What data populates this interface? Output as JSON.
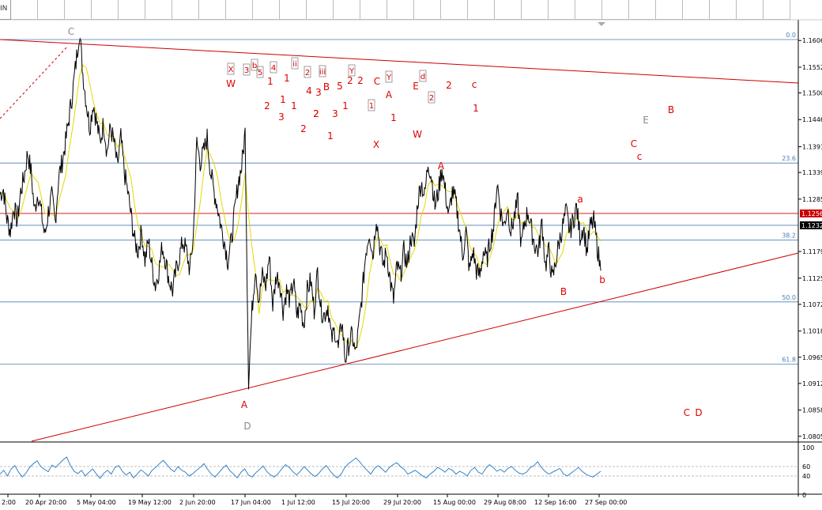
{
  "toolbar": {
    "timeframe_label": "IN",
    "button_count": 30
  },
  "colors": {
    "price": "#000000",
    "ma": "#e6d800",
    "fib": "#4a7fb5",
    "trend": "#cc0000",
    "label_red": "#dd0000",
    "label_gray": "#888888",
    "osc": "#1f77c4"
  },
  "chart_data": {
    "type": "line",
    "x_ticks": [
      "2:00",
      "20 Apr 20:00",
      "5 May 04:00",
      "19 May 12:00",
      "2 Jun 20:00",
      "17 Jun 04:00",
      "1 Jul 12:00",
      "15 Jul 20:00",
      "29 Jul 20:00",
      "15 Aug 00:00",
      "29 Aug 08:00",
      "12 Sep 16:00",
      "27 Sep 00:00"
    ],
    "y_ticks": [
      "1.1606",
      "1.1552",
      "1.1500",
      "1.1446",
      "1.1391",
      "1.1339",
      "1.1285",
      "1.1179",
      "1.1125",
      "1.1072",
      "1.1018",
      "1.0965",
      "1.0912",
      "1.0858",
      "1.0805"
    ],
    "ylim": [
      1.0795,
      1.1648
    ],
    "price_tags": [
      {
        "label": "1.1256",
        "value": 1.1256,
        "color": "#cc0000"
      },
      {
        "label": "1.1232",
        "value": 1.1232,
        "color": "#000000"
      }
    ],
    "fib_levels": [
      {
        "label": "0.0",
        "value": 1.1608
      },
      {
        "label": "23.6",
        "value": 1.1358
      },
      {
        "label": "38.2",
        "value": 1.1202
      },
      {
        "label": "50.0",
        "value": 1.1077
      },
      {
        "label": "61.8",
        "value": 1.0951
      }
    ],
    "extra_hlines": [
      1.1232
    ],
    "price_series": [
      1.1295,
      1.1305,
      1.1245,
      1.122,
      1.127,
      1.124,
      1.13,
      1.133,
      1.138,
      1.134,
      1.126,
      1.13,
      1.1255,
      1.121,
      1.126,
      1.129,
      1.124,
      1.133,
      1.136,
      1.14,
      1.145,
      1.15,
      1.156,
      1.1625,
      1.154,
      1.148,
      1.143,
      1.148,
      1.144,
      1.14,
      1.144,
      1.138,
      1.143,
      1.14,
      1.135,
      1.141,
      1.134,
      1.13,
      1.125,
      1.12,
      1.118,
      1.122,
      1.116,
      1.12,
      1.115,
      1.111,
      1.114,
      1.119,
      1.116,
      1.112,
      1.11,
      1.114,
      1.117,
      1.12,
      1.118,
      1.114,
      1.121,
      1.14,
      1.136,
      1.138,
      1.141,
      1.134,
      1.13,
      1.127,
      1.123,
      1.12,
      1.116,
      1.12,
      1.126,
      1.132,
      1.135,
      1.142,
      1.092,
      1.106,
      1.115,
      1.108,
      1.113,
      1.111,
      1.117,
      1.107,
      1.113,
      1.112,
      1.106,
      1.11,
      1.108,
      1.112,
      1.105,
      1.107,
      1.103,
      1.11,
      1.112,
      1.106,
      1.114,
      1.106,
      1.105,
      1.107,
      1.1,
      1.102,
      1.098,
      1.104,
      1.096,
      1.099,
      1.101,
      1.097,
      1.103,
      1.11,
      1.118,
      1.122,
      1.117,
      1.125,
      1.119,
      1.115,
      1.118,
      1.112,
      1.108,
      1.115,
      1.113,
      1.118,
      1.115,
      1.121,
      1.119,
      1.128,
      1.132,
      1.129,
      1.136,
      1.133,
      1.127,
      1.13,
      1.135,
      1.13,
      1.125,
      1.13,
      1.128,
      1.123,
      1.117,
      1.122,
      1.114,
      1.118,
      1.114,
      1.113,
      1.118,
      1.116,
      1.12,
      1.123,
      1.132,
      1.126,
      1.123,
      1.127,
      1.122,
      1.125,
      1.128,
      1.119,
      1.124,
      1.126,
      1.122,
      1.119,
      1.118,
      1.124,
      1.115,
      1.118,
      1.112,
      1.116,
      1.12,
      1.123,
      1.126,
      1.122,
      1.124,
      1.127,
      1.121,
      1.123,
      1.118,
      1.123,
      1.124,
      1.119,
      1.114
    ],
    "osc_ylim": [
      0,
      100
    ],
    "osc_ticks": [
      "100",
      "60",
      "40",
      "0"
    ],
    "osc_series": [
      44,
      52,
      40,
      55,
      62,
      48,
      38,
      46,
      58,
      66,
      72,
      60,
      54,
      49,
      63,
      58,
      66,
      74,
      80,
      62,
      50,
      45,
      52,
      40,
      48,
      55,
      44,
      35,
      46,
      52,
      44,
      58,
      62,
      50,
      42,
      48,
      36,
      44,
      53,
      47,
      40,
      52,
      58,
      66,
      73,
      64,
      55,
      49,
      60,
      52,
      48,
      40,
      45,
      52,
      58,
      66,
      54,
      44,
      38,
      47,
      56,
      63,
      51,
      44,
      36,
      48,
      55,
      42,
      38,
      47,
      54,
      61,
      49,
      42,
      38,
      45,
      55,
      64,
      58,
      49,
      42,
      50,
      60,
      52,
      44,
      39,
      46,
      55,
      62,
      51,
      42,
      36,
      44,
      58,
      66,
      72,
      78,
      70,
      60,
      52,
      44,
      56,
      62,
      55,
      48,
      58,
      64,
      68,
      60,
      54,
      44,
      48,
      52,
      46,
      40,
      36,
      44,
      50,
      58,
      54,
      48,
      56,
      52,
      44,
      50,
      46,
      40,
      52,
      58,
      48,
      44,
      56,
      64,
      58,
      50,
      54,
      48,
      56,
      60,
      52,
      46,
      44,
      48,
      58,
      62,
      70,
      58,
      50,
      44,
      48,
      52,
      56,
      44,
      40,
      46,
      52,
      58,
      50,
      44,
      40,
      38,
      44,
      50
    ]
  },
  "wave_labels": [
    {
      "id": "C-top",
      "text": "C",
      "color": "#888888"
    },
    {
      "id": "A-low",
      "text": "A",
      "color": "#dd0000"
    },
    {
      "id": "D-low",
      "text": "D",
      "color": "#888888"
    },
    {
      "id": "A-mid",
      "text": "A",
      "color": "#dd0000"
    },
    {
      "id": "a-rt",
      "text": "a",
      "color": "#dd0000"
    },
    {
      "id": "B-rt",
      "text": "B",
      "color": "#dd0000"
    },
    {
      "id": "b-rt",
      "text": "b",
      "color": "#dd0000"
    },
    {
      "id": "E-fut",
      "text": "E",
      "color": "#888888"
    },
    {
      "id": "B-fut",
      "text": "B",
      "color": "#dd0000"
    },
    {
      "id": "C-fut",
      "text": "C",
      "color": "#dd0000"
    },
    {
      "id": "c-fut",
      "text": "c",
      "color": "#dd0000"
    },
    {
      "id": "C-bot",
      "text": "C",
      "color": "#dd0000"
    },
    {
      "id": "D-bot",
      "text": "D",
      "color": "#dd0000"
    },
    {
      "id": "W1",
      "text": "W",
      "color": "#dd0000"
    },
    {
      "id": "X1",
      "text": "X",
      "color": "#dd0000"
    },
    {
      "id": "W2",
      "text": "W",
      "color": "#dd0000"
    },
    {
      "id": "A-up",
      "text": "A",
      "color": "#dd0000"
    },
    {
      "id": "C-up",
      "text": "C",
      "color": "#dd0000"
    },
    {
      "id": "E-up",
      "text": "E",
      "color": "#dd0000"
    },
    {
      "id": "B-up",
      "text": "B",
      "color": "#dd0000"
    },
    {
      "id": "c-up",
      "text": "c",
      "color": "#dd0000"
    },
    {
      "id": "n1",
      "text": "1",
      "color": "#dd0000"
    },
    {
      "id": "n2",
      "text": "1",
      "color": "#dd0000"
    },
    {
      "id": "n3",
      "text": "1",
      "color": "#dd0000"
    },
    {
      "id": "n4",
      "text": "1",
      "color": "#dd0000"
    },
    {
      "id": "n5",
      "text": "1",
      "color": "#dd0000"
    },
    {
      "id": "n6",
      "text": "1",
      "color": "#dd0000"
    },
    {
      "id": "n7",
      "text": "1",
      "color": "#dd0000"
    },
    {
      "id": "n8",
      "text": "2",
      "color": "#dd0000"
    },
    {
      "id": "n9",
      "text": "2",
      "color": "#dd0000"
    },
    {
      "id": "n10",
      "text": "2",
      "color": "#dd0000"
    },
    {
      "id": "n11",
      "text": "2",
      "color": "#dd0000"
    },
    {
      "id": "n12",
      "text": "2",
      "color": "#dd0000"
    },
    {
      "id": "n13",
      "text": "3",
      "color": "#dd0000"
    },
    {
      "id": "n14",
      "text": "3",
      "color": "#dd0000"
    },
    {
      "id": "n15",
      "text": "4",
      "color": "#dd0000"
    },
    {
      "id": "n16",
      "text": "3",
      "color": "#dd0000"
    },
    {
      "id": "n17",
      "text": "5",
      "color": "#dd0000"
    },
    {
      "id": "n18",
      "text": "2",
      "color": "#dd0000"
    },
    {
      "id": "n19",
      "text": "2",
      "color": "#dd0000"
    },
    {
      "id": "n20",
      "text": "1",
      "color": "#dd0000"
    }
  ],
  "boxed_labels": [
    {
      "id": "b1",
      "text": "X"
    },
    {
      "id": "b2",
      "text": "3"
    },
    {
      "id": "b3",
      "text": "b"
    },
    {
      "id": "b4",
      "text": "5"
    },
    {
      "id": "b5",
      "text": "4"
    },
    {
      "id": "b6",
      "text": "ii"
    },
    {
      "id": "b7",
      "text": "2"
    },
    {
      "id": "b8",
      "text": "iii"
    },
    {
      "id": "b9",
      "text": "Y"
    },
    {
      "id": "b10",
      "text": "Y"
    },
    {
      "id": "b11",
      "text": "d"
    },
    {
      "id": "b12",
      "text": "1"
    },
    {
      "id": "b13",
      "text": "2"
    }
  ]
}
